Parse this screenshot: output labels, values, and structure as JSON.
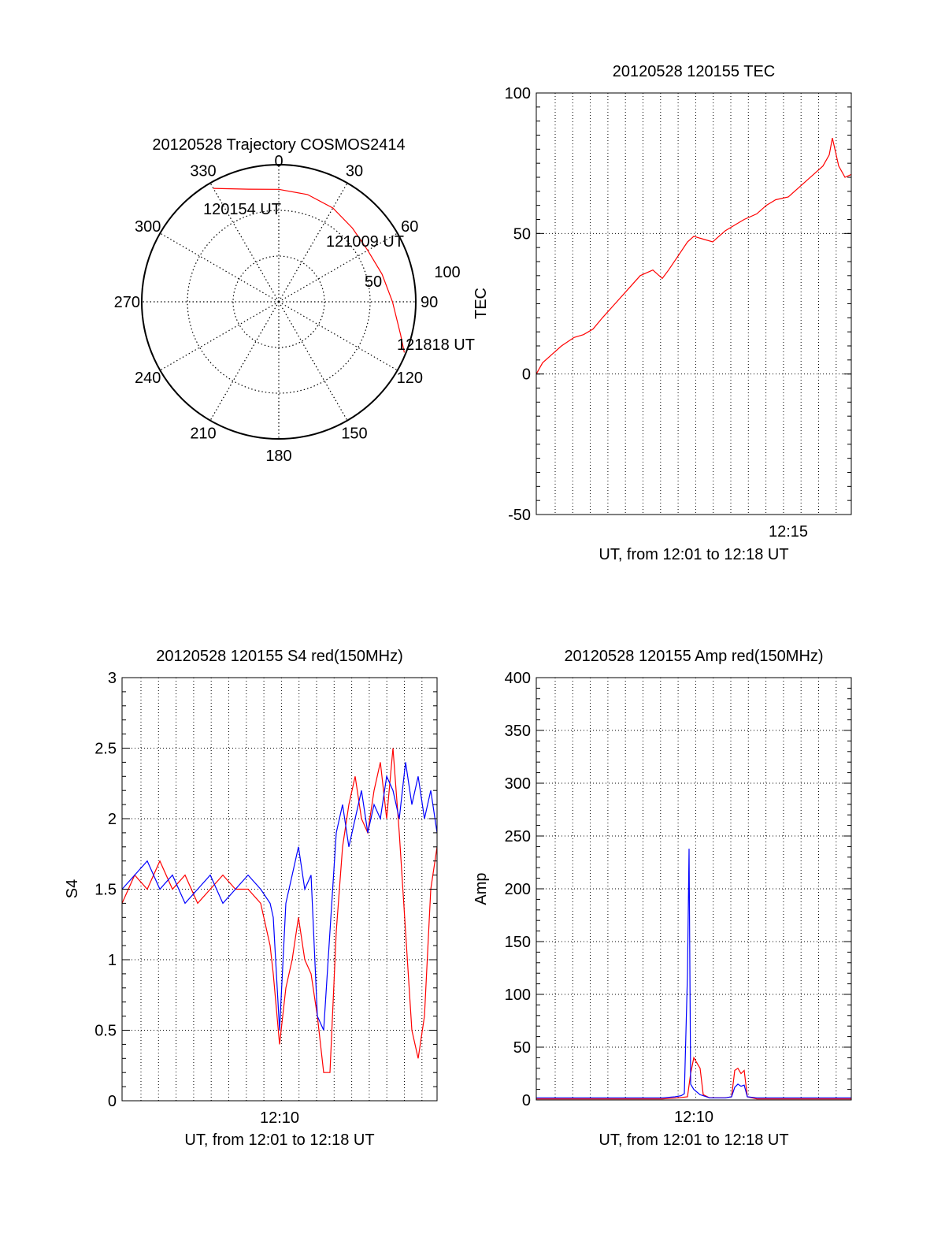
{
  "chart_data": [
    {
      "id": "trajectory",
      "type": "polar",
      "title": "20120528 Trajectory COSMOS2414",
      "angle_labels": [
        "0",
        "30",
        "60",
        "90",
        "120",
        "150",
        "180",
        "210",
        "240",
        "270",
        "300",
        "330"
      ],
      "radius_labels": [
        "50",
        "100"
      ],
      "elevation_rings": [
        60,
        30
      ],
      "point_labels": {
        "start": "120154 UT",
        "mid": "121009 UT",
        "end": "121818 UT"
      },
      "track": [
        {
          "az": 330,
          "r": 95.5
        },
        {
          "az": 345,
          "r": 85
        },
        {
          "az": 0,
          "r": 82
        },
        {
          "az": 15,
          "r": 81
        },
        {
          "az": 30,
          "r": 79
        },
        {
          "az": 45,
          "r": 76
        },
        {
          "az": 60,
          "r": 75
        },
        {
          "az": 75,
          "r": 78
        },
        {
          "az": 90,
          "r": 83
        },
        {
          "az": 105,
          "r": 92
        },
        {
          "az": 112,
          "r": 98.8
        }
      ],
      "colors": {
        "track": "#ff0000"
      }
    },
    {
      "id": "tec",
      "type": "line",
      "title": "20120528 120155 TEC",
      "xlabel": "UT, from 12:01 to 12:18 UT",
      "ylabel": "TEC",
      "xlim": [
        0,
        1
      ],
      "ylim": [
        -50,
        100
      ],
      "yticks": [
        "-50",
        "0",
        "50",
        "100"
      ],
      "xtick_labels": [
        {
          "pos": 0.8,
          "label": "12:15"
        }
      ],
      "series": [
        {
          "color": "#ff0000",
          "x": [
            0.0,
            0.02,
            0.05,
            0.08,
            0.12,
            0.15,
            0.18,
            0.21,
            0.25,
            0.29,
            0.33,
            0.37,
            0.4,
            0.42,
            0.45,
            0.48,
            0.5,
            0.53,
            0.56,
            0.6,
            0.63,
            0.66,
            0.7,
            0.73,
            0.76,
            0.8,
            0.84,
            0.88,
            0.91,
            0.93,
            0.94,
            0.96,
            0.98,
            1.0
          ],
          "y": [
            0,
            4,
            7,
            10,
            13,
            14,
            16,
            20,
            25,
            30,
            35,
            37,
            34,
            37,
            42,
            47,
            49,
            48,
            47,
            51,
            53,
            55,
            57,
            60,
            62,
            63,
            67,
            71,
            74,
            78,
            84,
            74,
            70,
            71
          ]
        }
      ]
    },
    {
      "id": "s4",
      "type": "line",
      "title": "20120528 120155 S4 red(150MHz)",
      "xlabel": "UT, from 12:01 to 12:18 UT",
      "ylabel": "S4",
      "xlim": [
        0,
        1
      ],
      "ylim": [
        0,
        3
      ],
      "yticks": [
        "0",
        "0.5",
        "1",
        "1.5",
        "2",
        "2.5",
        "3"
      ],
      "xtick_labels": [
        {
          "pos": 0.5,
          "label": "12:10"
        }
      ],
      "series": [
        {
          "color": "#ff0000",
          "x": [
            0.0,
            0.04,
            0.08,
            0.12,
            0.16,
            0.2,
            0.24,
            0.28,
            0.32,
            0.36,
            0.4,
            0.44,
            0.47,
            0.48,
            0.5,
            0.52,
            0.54,
            0.56,
            0.58,
            0.6,
            0.62,
            0.64,
            0.66,
            0.68,
            0.7,
            0.72,
            0.74,
            0.76,
            0.78,
            0.8,
            0.82,
            0.84,
            0.86,
            0.88,
            0.9,
            0.92,
            0.94,
            0.96,
            0.98,
            1.0
          ],
          "y": [
            1.4,
            1.6,
            1.5,
            1.7,
            1.5,
            1.6,
            1.4,
            1.5,
            1.6,
            1.5,
            1.5,
            1.4,
            1.1,
            0.9,
            0.4,
            0.8,
            1.0,
            1.3,
            1.0,
            0.9,
            0.6,
            0.2,
            0.2,
            1.2,
            1.8,
            2.1,
            2.3,
            2.0,
            1.9,
            2.2,
            2.4,
            2.0,
            2.5,
            1.9,
            1.2,
            0.5,
            0.3,
            0.6,
            1.5,
            1.8
          ]
        },
        {
          "color": "#0000ff",
          "x": [
            0.0,
            0.04,
            0.08,
            0.12,
            0.16,
            0.2,
            0.24,
            0.28,
            0.32,
            0.36,
            0.4,
            0.44,
            0.47,
            0.48,
            0.5,
            0.52,
            0.54,
            0.56,
            0.58,
            0.6,
            0.62,
            0.64,
            0.66,
            0.68,
            0.7,
            0.72,
            0.74,
            0.76,
            0.78,
            0.8,
            0.82,
            0.84,
            0.86,
            0.88,
            0.9,
            0.92,
            0.94,
            0.96,
            0.98,
            1.0
          ],
          "y": [
            1.5,
            1.6,
            1.7,
            1.5,
            1.6,
            1.4,
            1.5,
            1.6,
            1.4,
            1.5,
            1.6,
            1.5,
            1.4,
            1.3,
            0.5,
            1.4,
            1.6,
            1.8,
            1.5,
            1.6,
            0.6,
            0.5,
            1.2,
            1.9,
            2.1,
            1.8,
            2.0,
            2.2,
            1.9,
            2.1,
            2.0,
            2.3,
            2.2,
            2.0,
            2.4,
            2.1,
            2.3,
            2.0,
            2.2,
            1.9
          ]
        }
      ]
    },
    {
      "id": "amp",
      "type": "line",
      "title": "20120528 120155 Amp red(150MHz)",
      "xlabel": "UT, from 12:01 to 12:18 UT",
      "ylabel": "Amp",
      "xlim": [
        0,
        1
      ],
      "ylim": [
        0,
        400
      ],
      "yticks": [
        "0",
        "50",
        "100",
        "150",
        "200",
        "250",
        "300",
        "350",
        "400"
      ],
      "xtick_labels": [
        {
          "pos": 0.5,
          "label": "12:10"
        }
      ],
      "series": [
        {
          "color": "#ff0000",
          "x": [
            0.0,
            0.1,
            0.2,
            0.3,
            0.4,
            0.45,
            0.48,
            0.49,
            0.5,
            0.51,
            0.52,
            0.53,
            0.55,
            0.6,
            0.62,
            0.63,
            0.64,
            0.65,
            0.66,
            0.67,
            0.7,
            0.8,
            0.9,
            1.0
          ],
          "y": [
            1,
            1,
            1,
            1,
            1,
            2,
            3,
            25,
            40,
            35,
            30,
            5,
            2,
            2,
            3,
            28,
            30,
            25,
            28,
            3,
            1,
            1,
            1,
            1
          ]
        },
        {
          "color": "#0000ff",
          "x": [
            0.0,
            0.1,
            0.2,
            0.3,
            0.4,
            0.44,
            0.46,
            0.47,
            0.48,
            0.485,
            0.49,
            0.5,
            0.52,
            0.55,
            0.6,
            0.62,
            0.63,
            0.64,
            0.65,
            0.66,
            0.67,
            0.7,
            0.8,
            0.9,
            1.0
          ],
          "y": [
            2,
            2,
            2,
            2,
            2,
            3,
            4,
            6,
            120,
            238,
            15,
            10,
            5,
            2,
            2,
            3,
            12,
            15,
            13,
            14,
            3,
            2,
            2,
            2,
            2
          ]
        }
      ]
    }
  ]
}
